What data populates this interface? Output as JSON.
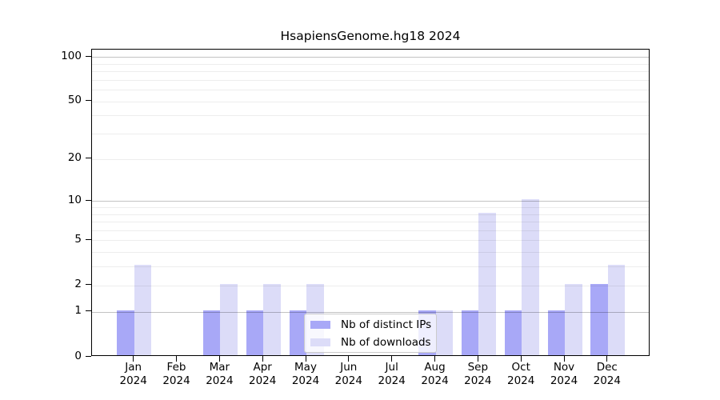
{
  "title": "HsapiensGenome.hg18 2024",
  "legend": {
    "items": [
      {
        "label": "Nb of distinct IPs",
        "color": "#a8a8f7"
      },
      {
        "label": "Nb of downloads",
        "color": "#dcdcf8"
      }
    ]
  },
  "chart_data": {
    "type": "bar",
    "title": "HsapiensGenome.hg18 2024",
    "categories": [
      "Jan 2024",
      "Feb 2024",
      "Mar 2024",
      "Apr 2024",
      "May 2024",
      "Jun 2024",
      "Jul 2024",
      "Aug 2024",
      "Sep 2024",
      "Oct 2024",
      "Nov 2024",
      "Dec 2024"
    ],
    "series": [
      {
        "name": "Nb of distinct IPs",
        "color": "#a8a8f7",
        "values": [
          1,
          0,
          1,
          1,
          1,
          0,
          0,
          1,
          1,
          1,
          1,
          2
        ]
      },
      {
        "name": "Nb of downloads",
        "color": "#dcdcf8",
        "values": [
          3,
          0,
          2,
          2,
          2,
          0,
          0,
          1,
          8,
          10,
          2,
          3
        ]
      }
    ],
    "xlabel": "",
    "ylabel": "",
    "y_scale": "log1p",
    "ylim": [
      0,
      112
    ],
    "y_ticks": [
      0,
      1,
      2,
      5,
      10,
      20,
      50,
      100
    ],
    "y_major_gridlines": [
      1,
      10,
      100
    ],
    "y_minor_gridlines": [
      2,
      3,
      4,
      5,
      6,
      7,
      8,
      9,
      20,
      30,
      40,
      50,
      60,
      70,
      80,
      90
    ],
    "grid": true,
    "legend_position": "lower center"
  }
}
